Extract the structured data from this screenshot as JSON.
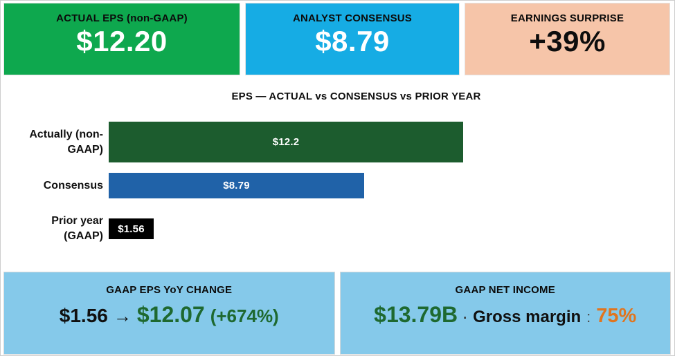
{
  "colors": {
    "card_green": "#0ea84e",
    "card_blue": "#16ace4",
    "card_peach": "#f6c5a9",
    "panel_blue": "#85c9ea",
    "bar_green": "#1c5c2e",
    "bar_blue": "#2062a8",
    "bar_black": "#000000",
    "text_green": "#1e6930",
    "text_orange": "#e0751f"
  },
  "cards": [
    {
      "title": "ACTUAL EPS (non-GAAP)",
      "value": "$12.20"
    },
    {
      "title": "ANALYST CONSENSUS",
      "value": "$8.79"
    },
    {
      "title": "EARNINGS SURPRISE",
      "value": "+39%"
    }
  ],
  "chart_data": {
    "type": "bar",
    "orientation": "horizontal",
    "title": "EPS — ACTUAL vs CONSENSUS vs PRIOR YEAR",
    "categories": [
      "Actually (non-\nGAAP)",
      "Consensus",
      "Prior year\n(GAAP)"
    ],
    "values": [
      12.2,
      8.79,
      1.56
    ],
    "value_labels": [
      "$12.2",
      "$8.79",
      "$1.56"
    ],
    "colors": [
      "#1c5c2e",
      "#2062a8",
      "#000000"
    ],
    "xlim": [
      0,
      12.2
    ],
    "grid": false,
    "legend": false,
    "value_label_position": "center-inside",
    "value_label_color": "#ffffff"
  },
  "panels": [
    {
      "title": "GAAP EPS YoY CHANGE",
      "value_parts": {
        "from": "$1.56",
        "arrow": "→",
        "to": "$12.07",
        "change": "(+674%)"
      }
    },
    {
      "title": "GAAP NET INCOME",
      "value_parts": {
        "amount": "$13.79B",
        "separator": "·",
        "label": "Gross margin",
        "colon": ":",
        "percent": "75%"
      }
    }
  ]
}
